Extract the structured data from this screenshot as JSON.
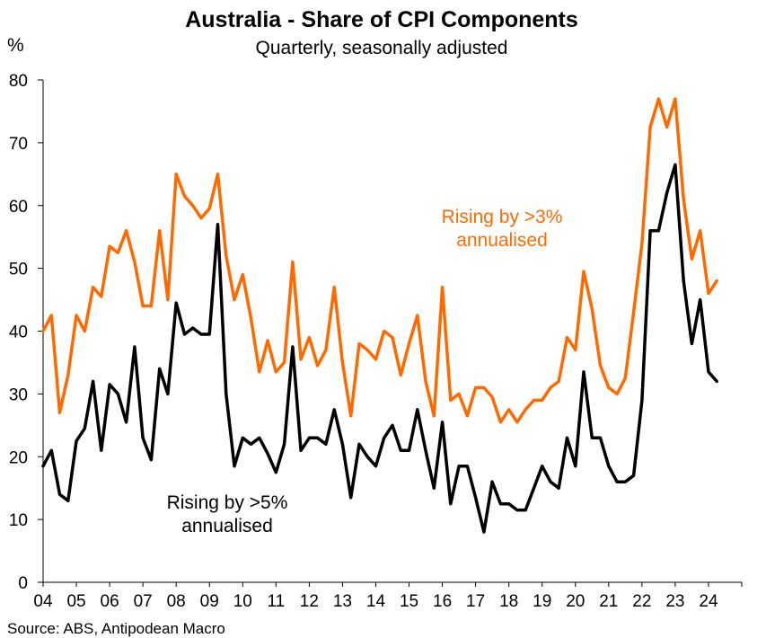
{
  "chart_data": {
    "type": "line",
    "title": "Australia - Share of CPI Components",
    "subtitle": "Quarterly, seasonally adjusted",
    "ylabel": "%",
    "ylim": [
      0,
      80
    ],
    "yticks": [
      0,
      10,
      20,
      30,
      40,
      50,
      60,
      70,
      80
    ],
    "xlim": [
      2004.0,
      2025.0
    ],
    "xticks": [
      {
        "label": "04",
        "x": 2004
      },
      {
        "label": "05",
        "x": 2005
      },
      {
        "label": "06",
        "x": 2006
      },
      {
        "label": "07",
        "x": 2007
      },
      {
        "label": "08",
        "x": 2008
      },
      {
        "label": "09",
        "x": 2009
      },
      {
        "label": "10",
        "x": 2010
      },
      {
        "label": "11",
        "x": 2011
      },
      {
        "label": "12",
        "x": 2012
      },
      {
        "label": "13",
        "x": 2013
      },
      {
        "label": "14",
        "x": 2014
      },
      {
        "label": "15",
        "x": 2015
      },
      {
        "label": "16",
        "x": 2016
      },
      {
        "label": "17",
        "x": 2017
      },
      {
        "label": "18",
        "x": 2018
      },
      {
        "label": "19",
        "x": 2019
      },
      {
        "label": "20",
        "x": 2020
      },
      {
        "label": "21",
        "x": 2021
      },
      {
        "label": "22",
        "x": 2022
      },
      {
        "label": "23",
        "x": 2023
      },
      {
        "label": "24",
        "x": 2024
      }
    ],
    "x_start": 2004.0,
    "x_step": 0.25,
    "grid": false,
    "series": [
      {
        "name": "Rising by >3% annualised",
        "color": "#FF6A00",
        "values": [
          40.0,
          42.5,
          27.0,
          33.0,
          42.5,
          40.0,
          47.0,
          45.5,
          53.5,
          52.5,
          56.0,
          51.0,
          44.0,
          44.0,
          56.0,
          45.0,
          65.0,
          61.5,
          60.0,
          58.0,
          59.5,
          65.0,
          52.0,
          45.0,
          49.0,
          42.0,
          33.5,
          38.5,
          33.5,
          35.0,
          51.0,
          35.5,
          39.0,
          34.5,
          37.0,
          47.0,
          35.0,
          26.5,
          38.0,
          37.0,
          35.5,
          40.0,
          39.0,
          33.0,
          38.0,
          42.5,
          32.0,
          26.5,
          47.0,
          29.0,
          30.0,
          26.5,
          31.0,
          31.0,
          29.5,
          25.5,
          27.5,
          25.5,
          27.5,
          29.0,
          29.0,
          31.0,
          32.0,
          39.0,
          37.0,
          49.5,
          43.5,
          34.5,
          31.0,
          30.0,
          32.5,
          43.0,
          54.0,
          72.5,
          77.0,
          72.5,
          77.0,
          61.0,
          51.5,
          56.0,
          46.0,
          48.0
        ]
      },
      {
        "name": "Rising by >5% annualised",
        "color": "#000000",
        "values": [
          18.5,
          21.0,
          14.0,
          13.0,
          22.5,
          24.5,
          32.0,
          21.0,
          31.5,
          30.0,
          25.5,
          37.5,
          23.0,
          19.5,
          34.0,
          30.0,
          44.5,
          39.5,
          40.5,
          39.5,
          39.5,
          57.0,
          30.0,
          18.5,
          23.0,
          22.0,
          23.0,
          20.5,
          17.5,
          22.0,
          37.5,
          21.0,
          23.0,
          23.0,
          22.0,
          27.5,
          22.0,
          13.5,
          22.0,
          20.0,
          18.5,
          23.0,
          25.0,
          21.0,
          21.0,
          27.5,
          21.0,
          15.0,
          25.5,
          12.5,
          18.5,
          18.5,
          13.5,
          8.0,
          16.0,
          12.5,
          12.5,
          11.5,
          11.5,
          15.0,
          18.5,
          16.0,
          15.0,
          23.0,
          18.5,
          33.5,
          23.0,
          23.0,
          18.5,
          16.0,
          16.0,
          17.0,
          29.0,
          56.0,
          56.0,
          62.0,
          66.5,
          48.0,
          38.0,
          45.0,
          33.5,
          32.0
        ]
      }
    ],
    "annotations": [
      {
        "series": 0,
        "line1": "Rising by >3%",
        "line2": "annualised"
      },
      {
        "series": 1,
        "line1": "Rising by >5%",
        "line2": "annualised"
      }
    ],
    "source": "Source: ABS, Antipodean Macro"
  }
}
